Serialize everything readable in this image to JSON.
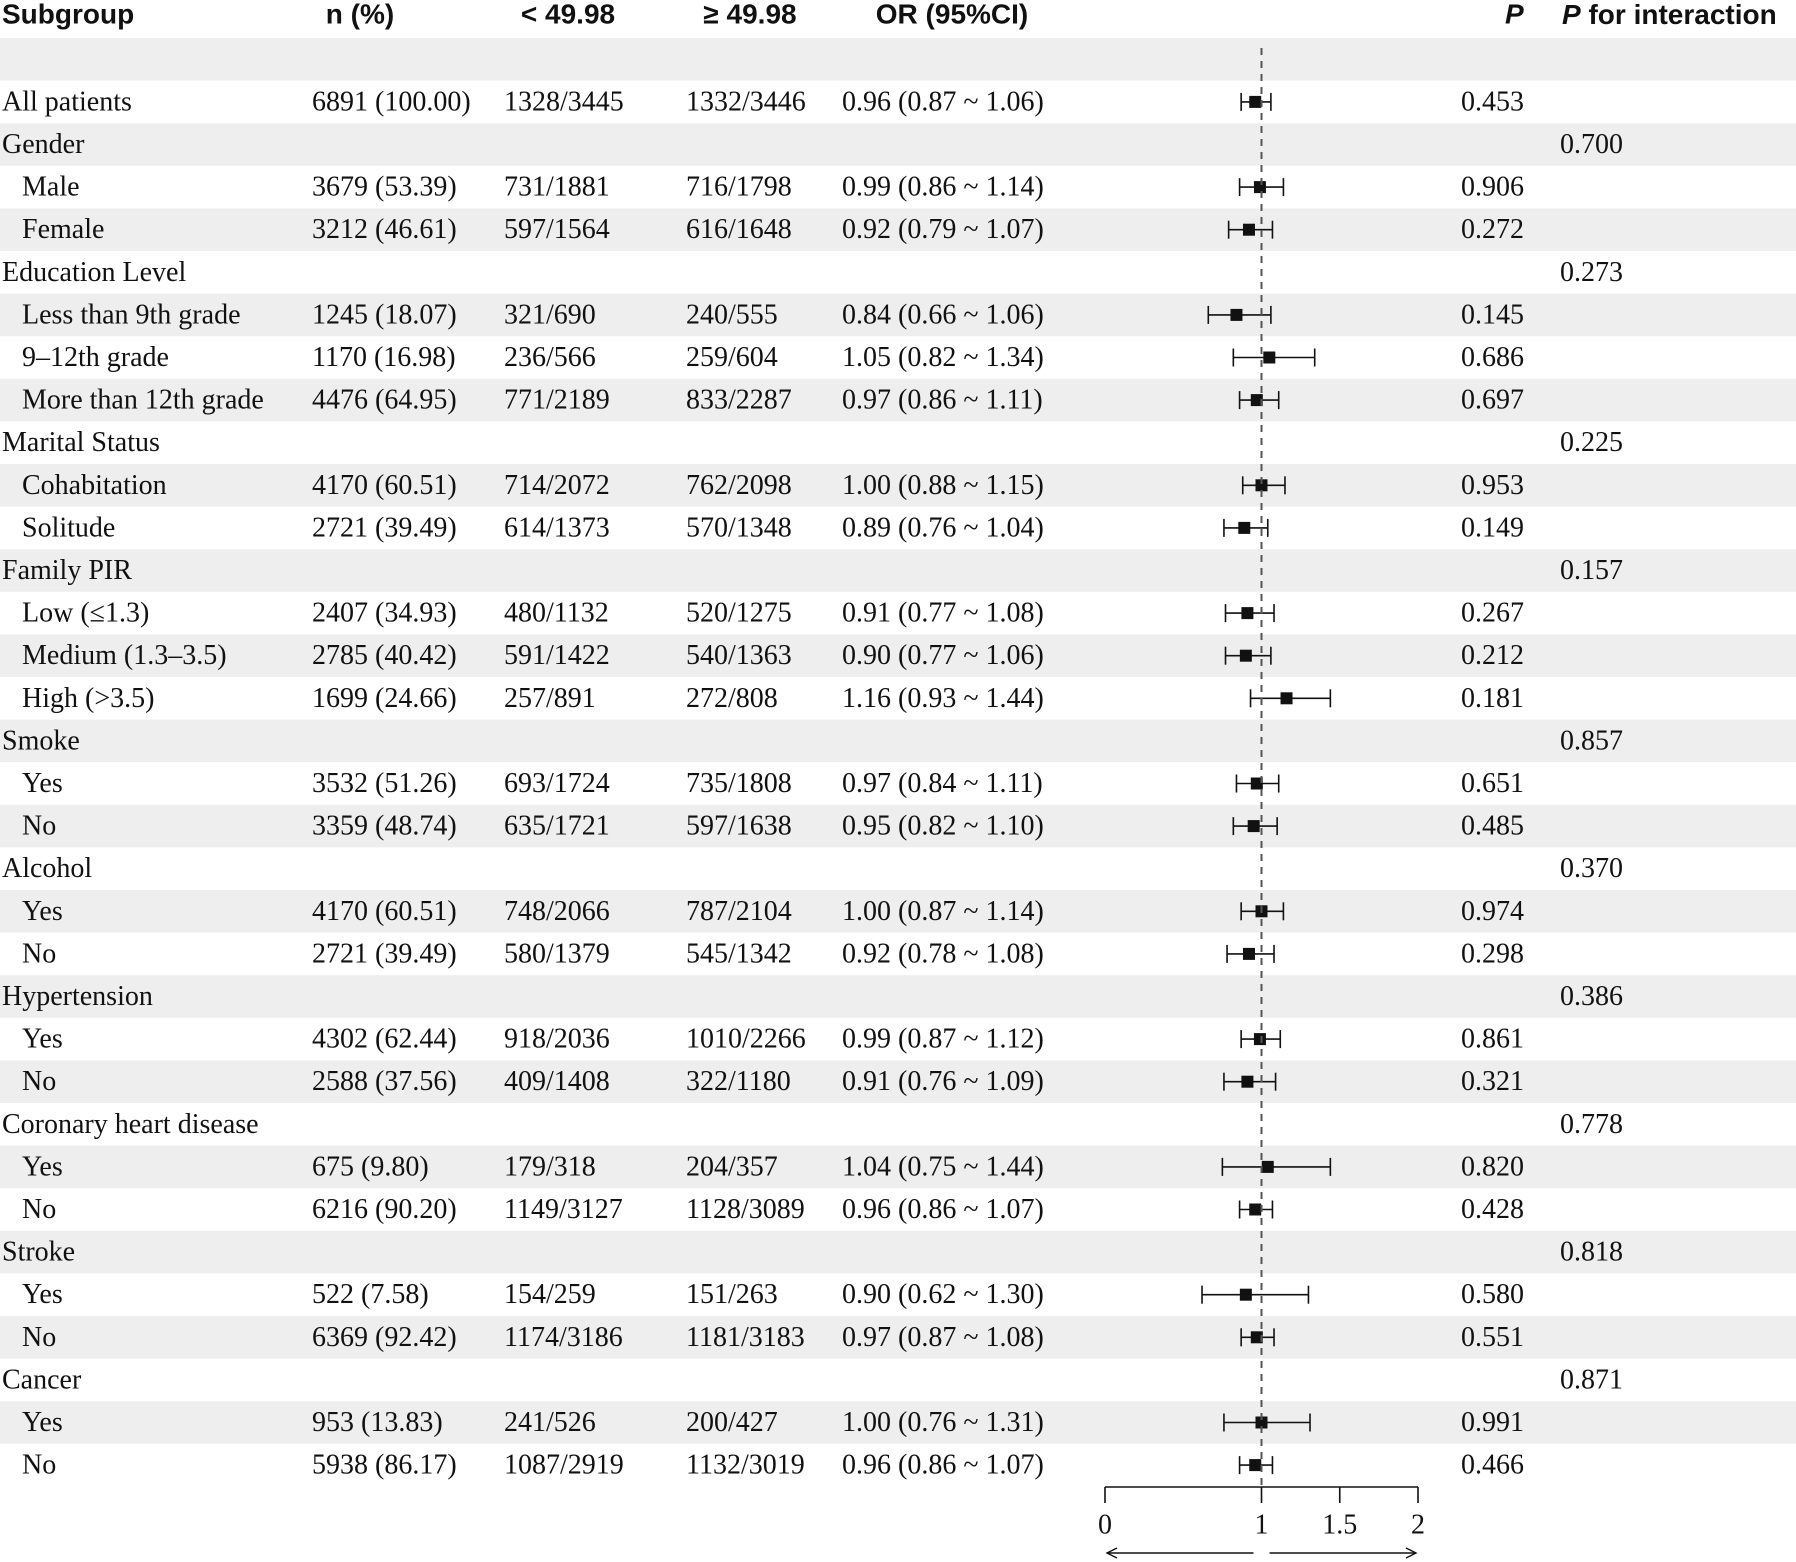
{
  "chart_data": {
    "type": "forest",
    "headers": {
      "subgroup": "Subgroup",
      "n": "n (%)",
      "low": "< 49.98",
      "high": "≥ 49.98",
      "or": "OR (95%CI)",
      "p": "P",
      "p_interaction_italic": "P",
      "p_interaction_rest": " for interaction"
    },
    "xlim": [
      0,
      2
    ],
    "reference_line": 1,
    "x_ticks": [
      "0",
      "1",
      "1.5",
      "2"
    ],
    "rows": [
      {
        "label": "",
        "kind": "blank"
      },
      {
        "label": "All patients",
        "kind": "data",
        "n": "6891 (100.00)",
        "low": "1328/3445",
        "high": "1332/3446",
        "or_text": "0.96 (0.87 ~ 1.06)",
        "or": 0.96,
        "lo": 0.87,
        "hi": 1.06,
        "p": "0.453"
      },
      {
        "label": "Gender",
        "kind": "group",
        "p_int": "0.700"
      },
      {
        "label": "Male",
        "kind": "data",
        "n": "3679 (53.39)",
        "low": "731/1881",
        "high": "716/1798",
        "or_text": "0.99 (0.86 ~ 1.14)",
        "or": 0.99,
        "lo": 0.86,
        "hi": 1.14,
        "p": "0.906"
      },
      {
        "label": "Female",
        "kind": "data",
        "n": "3212 (46.61)",
        "low": "597/1564",
        "high": "616/1648",
        "or_text": "0.92 (0.79 ~ 1.07)",
        "or": 0.92,
        "lo": 0.79,
        "hi": 1.07,
        "p": "0.272"
      },
      {
        "label": "Education Level",
        "kind": "group",
        "p_int": "0.273"
      },
      {
        "label": "Less than 9th grade",
        "kind": "data",
        "n": "1245 (18.07)",
        "low": "321/690",
        "high": "240/555",
        "or_text": "0.84 (0.66 ~ 1.06)",
        "or": 0.84,
        "lo": 0.66,
        "hi": 1.06,
        "p": "0.145"
      },
      {
        "label": "9–12th grade",
        "kind": "data",
        "n": "1170 (16.98)",
        "low": "236/566",
        "high": "259/604",
        "or_text": "1.05 (0.82 ~ 1.34)",
        "or": 1.05,
        "lo": 0.82,
        "hi": 1.34,
        "p": "0.686"
      },
      {
        "label": "More than 12th grade",
        "kind": "data",
        "n": "4476 (64.95)",
        "low": "771/2189",
        "high": "833/2287",
        "or_text": "0.97 (0.86 ~ 1.11)",
        "or": 0.97,
        "lo": 0.86,
        "hi": 1.11,
        "p": "0.697"
      },
      {
        "label": "Marital Status",
        "kind": "group",
        "p_int": "0.225"
      },
      {
        "label": "Cohabitation",
        "kind": "data",
        "n": "4170 (60.51)",
        "low": "714/2072",
        "high": "762/2098",
        "or_text": "1.00 (0.88 ~ 1.15)",
        "or": 1.0,
        "lo": 0.88,
        "hi": 1.15,
        "p": "0.953"
      },
      {
        "label": "Solitude",
        "kind": "data",
        "n": "2721 (39.49)",
        "low": "614/1373",
        "high": "570/1348",
        "or_text": "0.89 (0.76 ~ 1.04)",
        "or": 0.89,
        "lo": 0.76,
        "hi": 1.04,
        "p": "0.149"
      },
      {
        "label": "Family PIR",
        "kind": "group",
        "p_int": "0.157"
      },
      {
        "label": "Low (≤1.3)",
        "kind": "data",
        "n": "2407 (34.93)",
        "low": "480/1132",
        "high": "520/1275",
        "or_text": "0.91 (0.77 ~ 1.08)",
        "or": 0.91,
        "lo": 0.77,
        "hi": 1.08,
        "p": "0.267"
      },
      {
        "label": "Medium (1.3–3.5)",
        "kind": "data",
        "n": "2785 (40.42)",
        "low": "591/1422",
        "high": "540/1363",
        "or_text": "0.90 (0.77 ~ 1.06)",
        "or": 0.9,
        "lo": 0.77,
        "hi": 1.06,
        "p": "0.212"
      },
      {
        "label": "High (>3.5)",
        "kind": "data",
        "n": "1699 (24.66)",
        "low": "257/891",
        "high": "272/808",
        "or_text": "1.16 (0.93 ~ 1.44)",
        "or": 1.16,
        "lo": 0.93,
        "hi": 1.44,
        "p": "0.181"
      },
      {
        "label": "Smoke",
        "kind": "group",
        "p_int": "0.857"
      },
      {
        "label": "Yes",
        "kind": "data",
        "n": "3532 (51.26)",
        "low": "693/1724",
        "high": "735/1808",
        "or_text": "0.97 (0.84 ~ 1.11)",
        "or": 0.97,
        "lo": 0.84,
        "hi": 1.11,
        "p": "0.651"
      },
      {
        "label": "No",
        "kind": "data",
        "n": "3359 (48.74)",
        "low": "635/1721",
        "high": "597/1638",
        "or_text": "0.95 (0.82 ~ 1.10)",
        "or": 0.95,
        "lo": 0.82,
        "hi": 1.1,
        "p": "0.485"
      },
      {
        "label": "Alcohol",
        "kind": "group",
        "p_int": "0.370"
      },
      {
        "label": "Yes",
        "kind": "data",
        "n": "4170 (60.51)",
        "low": "748/2066",
        "high": "787/2104",
        "or_text": "1.00 (0.87 ~ 1.14)",
        "or": 1.0,
        "lo": 0.87,
        "hi": 1.14,
        "p": "0.974"
      },
      {
        "label": "No",
        "kind": "data",
        "n": "2721 (39.49)",
        "low": "580/1379",
        "high": "545/1342",
        "or_text": "0.92 (0.78 ~ 1.08)",
        "or": 0.92,
        "lo": 0.78,
        "hi": 1.08,
        "p": "0.298"
      },
      {
        "label": "Hypertension",
        "kind": "group",
        "p_int": "0.386"
      },
      {
        "label": "Yes",
        "kind": "data",
        "n": "4302 (62.44)",
        "low": "918/2036",
        "high": "1010/2266",
        "or_text": "0.99 (0.87 ~ 1.12)",
        "or": 0.99,
        "lo": 0.87,
        "hi": 1.12,
        "p": "0.861"
      },
      {
        "label": "No",
        "kind": "data",
        "n": "2588 (37.56)",
        "low": "409/1408",
        "high": "322/1180",
        "or_text": "0.91 (0.76 ~ 1.09)",
        "or": 0.91,
        "lo": 0.76,
        "hi": 1.09,
        "p": "0.321"
      },
      {
        "label": "Coronary heart disease",
        "kind": "group",
        "p_int": "0.778"
      },
      {
        "label": "Yes",
        "kind": "data",
        "n": "675 (9.80)",
        "low": "179/318",
        "high": "204/357",
        "or_text": "1.04 (0.75 ~ 1.44)",
        "or": 1.04,
        "lo": 0.75,
        "hi": 1.44,
        "p": "0.820"
      },
      {
        "label": "No",
        "kind": "data",
        "n": "6216 (90.20)",
        "low": "1149/3127",
        "high": "1128/3089",
        "or_text": "0.96 (0.86 ~ 1.07)",
        "or": 0.96,
        "lo": 0.86,
        "hi": 1.07,
        "p": "0.428"
      },
      {
        "label": "Stroke",
        "kind": "group",
        "p_int": "0.818"
      },
      {
        "label": "Yes",
        "kind": "data",
        "n": "522 (7.58)",
        "low": "154/259",
        "high": "151/263",
        "or_text": "0.90 (0.62 ~ 1.30)",
        "or": 0.9,
        "lo": 0.62,
        "hi": 1.3,
        "p": "0.580"
      },
      {
        "label": "No",
        "kind": "data",
        "n": "6369 (92.42)",
        "low": "1174/3186",
        "high": "1181/3183",
        "or_text": "0.97 (0.87 ~ 1.08)",
        "or": 0.97,
        "lo": 0.87,
        "hi": 1.08,
        "p": "0.551"
      },
      {
        "label": "Cancer",
        "kind": "group",
        "p_int": "0.871"
      },
      {
        "label": "Yes",
        "kind": "data",
        "n": "953 (13.83)",
        "low": "241/526",
        "high": "200/427",
        "or_text": "1.00 (0.76 ~ 1.31)",
        "or": 1.0,
        "lo": 0.76,
        "hi": 1.31,
        "p": "0.991"
      },
      {
        "label": "No",
        "kind": "data",
        "n": "5938 (86.17)",
        "low": "1087/2919",
        "high": "1132/3019",
        "or_text": "0.96 (0.86 ~ 1.07)",
        "or": 0.96,
        "lo": 0.86,
        "hi": 1.07,
        "p": "0.466"
      }
    ],
    "colors": {
      "stripe": "#eeeeee",
      "ink": "#111111"
    }
  }
}
